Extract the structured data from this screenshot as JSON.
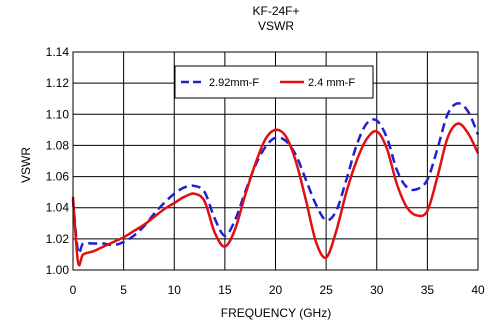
{
  "chart_data": {
    "type": "line",
    "title": "KF-24F+",
    "subtitle": "VSWR",
    "xlabel": "FREQUENCY (GHz)",
    "ylabel": "VSWR",
    "xlim": [
      0,
      40
    ],
    "ylim": [
      1.0,
      1.14
    ],
    "xticks": [
      0,
      5,
      10,
      15,
      20,
      25,
      30,
      35,
      40
    ],
    "yticks": [
      1.0,
      1.02,
      1.04,
      1.06,
      1.08,
      1.1,
      1.12,
      1.14
    ],
    "grid": true,
    "legend_position": "top-center",
    "series": [
      {
        "name": "2.92mm-F",
        "color": "#1f1fd6",
        "dash": "dashed",
        "x": [
          0,
          0.5,
          1,
          2,
          3,
          4,
          5,
          6,
          7,
          8,
          9,
          10,
          11,
          12,
          13,
          14,
          15,
          16,
          17,
          18,
          19,
          20,
          21,
          22,
          23,
          24,
          25,
          26,
          27,
          28,
          29,
          30,
          31,
          32,
          33,
          34,
          35,
          36,
          37,
          38,
          39,
          40
        ],
        "y": [
          1.045,
          1.012,
          1.017,
          1.017,
          1.017,
          1.016,
          1.018,
          1.022,
          1.028,
          1.036,
          1.043,
          1.049,
          1.053,
          1.054,
          1.05,
          1.033,
          1.022,
          1.032,
          1.05,
          1.067,
          1.079,
          1.085,
          1.083,
          1.074,
          1.058,
          1.042,
          1.032,
          1.038,
          1.058,
          1.08,
          1.094,
          1.096,
          1.085,
          1.064,
          1.053,
          1.052,
          1.058,
          1.078,
          1.1,
          1.107,
          1.102,
          1.087
        ]
      },
      {
        "name": "2.4 mm-F",
        "color": "#e01010",
        "dash": "solid",
        "x": [
          0,
          0.5,
          1,
          2,
          3,
          4,
          5,
          6,
          7,
          8,
          9,
          10,
          11,
          12,
          13,
          14,
          15,
          16,
          17,
          18,
          19,
          20,
          21,
          22,
          23,
          24,
          25,
          26,
          27,
          28,
          29,
          30,
          31,
          32,
          33,
          34,
          35,
          36,
          37,
          38,
          39,
          40
        ],
        "y": [
          1.047,
          1.005,
          1.01,
          1.012,
          1.015,
          1.018,
          1.021,
          1.025,
          1.029,
          1.034,
          1.039,
          1.043,
          1.047,
          1.049,
          1.044,
          1.024,
          1.015,
          1.026,
          1.048,
          1.068,
          1.084,
          1.09,
          1.086,
          1.07,
          1.045,
          1.018,
          1.008,
          1.025,
          1.05,
          1.07,
          1.084,
          1.089,
          1.078,
          1.055,
          1.04,
          1.035,
          1.038,
          1.06,
          1.085,
          1.094,
          1.088,
          1.075
        ]
      }
    ]
  }
}
